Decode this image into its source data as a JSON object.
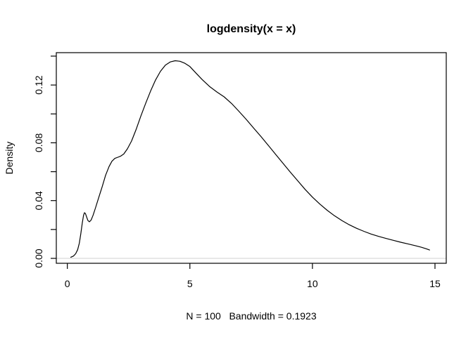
{
  "chart_data": {
    "type": "line",
    "title": "logdensity(x = x)",
    "xlabel": "N = 100   Bandwidth = 0.1923",
    "ylabel": "Density",
    "xlim": [
      -0.45,
      15.46
    ],
    "ylim": [
      -0.0034,
      0.1424
    ],
    "grid": false,
    "legend": null,
    "x_ticks": [
      {
        "v": 0,
        "label": "0"
      },
      {
        "v": 5,
        "label": "5"
      },
      {
        "v": 10,
        "label": "10"
      },
      {
        "v": 15,
        "label": "15"
      }
    ],
    "y_ticks": [
      {
        "v": 0.0,
        "label": "0.00"
      },
      {
        "v": 0.02,
        "label": ""
      },
      {
        "v": 0.04,
        "label": "0.04"
      },
      {
        "v": 0.06,
        "label": ""
      },
      {
        "v": 0.08,
        "label": "0.08"
      },
      {
        "v": 0.1,
        "label": ""
      },
      {
        "v": 0.12,
        "label": "0.12"
      },
      {
        "v": 0.14,
        "label": ""
      }
    ],
    "colors": {
      "curve": "#000000",
      "box": "#000000",
      "text": "#000000",
      "zero_line": "#d9d9d9"
    },
    "zero_reference_line_y": 0,
    "series": [
      {
        "name": "density",
        "points": [
          [
            0.14,
            0.0008
          ],
          [
            0.25,
            0.0016
          ],
          [
            0.34,
            0.0032
          ],
          [
            0.42,
            0.006
          ],
          [
            0.49,
            0.0105
          ],
          [
            0.55,
            0.017
          ],
          [
            0.61,
            0.0245
          ],
          [
            0.66,
            0.0298
          ],
          [
            0.7,
            0.0316
          ],
          [
            0.74,
            0.031
          ],
          [
            0.79,
            0.0285
          ],
          [
            0.84,
            0.0262
          ],
          [
            0.9,
            0.0253
          ],
          [
            0.97,
            0.0265
          ],
          [
            1.05,
            0.0298
          ],
          [
            1.15,
            0.035
          ],
          [
            1.28,
            0.042
          ],
          [
            1.42,
            0.0495
          ],
          [
            1.56,
            0.0575
          ],
          [
            1.7,
            0.0635
          ],
          [
            1.82,
            0.0672
          ],
          [
            1.94,
            0.0692
          ],
          [
            2.06,
            0.07
          ],
          [
            2.18,
            0.0708
          ],
          [
            2.3,
            0.0722
          ],
          [
            2.45,
            0.0758
          ],
          [
            2.62,
            0.0812
          ],
          [
            2.8,
            0.089
          ],
          [
            3.0,
            0.0985
          ],
          [
            3.2,
            0.1075
          ],
          [
            3.4,
            0.116
          ],
          [
            3.6,
            0.1235
          ],
          [
            3.8,
            0.1295
          ],
          [
            4.0,
            0.1338
          ],
          [
            4.2,
            0.136
          ],
          [
            4.4,
            0.1368
          ],
          [
            4.6,
            0.1364
          ],
          [
            4.8,
            0.135
          ],
          [
            5.0,
            0.1328
          ],
          [
            5.25,
            0.1282
          ],
          [
            5.5,
            0.1238
          ],
          [
            5.8,
            0.119
          ],
          [
            6.1,
            0.1152
          ],
          [
            6.4,
            0.1118
          ],
          [
            6.7,
            0.1072
          ],
          [
            7.0,
            0.1018
          ],
          [
            7.3,
            0.0962
          ],
          [
            7.6,
            0.0902
          ],
          [
            7.9,
            0.0843
          ],
          [
            8.2,
            0.0782
          ],
          [
            8.5,
            0.072
          ],
          [
            8.8,
            0.0658
          ],
          [
            9.1,
            0.0597
          ],
          [
            9.4,
            0.0537
          ],
          [
            9.7,
            0.0478
          ],
          [
            10.0,
            0.0424
          ],
          [
            10.3,
            0.0376
          ],
          [
            10.6,
            0.0333
          ],
          [
            10.9,
            0.0295
          ],
          [
            11.2,
            0.0262
          ],
          [
            11.5,
            0.0233
          ],
          [
            11.8,
            0.0208
          ],
          [
            12.1,
            0.0187
          ],
          [
            12.4,
            0.0168
          ],
          [
            12.7,
            0.0152
          ],
          [
            13.0,
            0.0138
          ],
          [
            13.3,
            0.0125
          ],
          [
            13.6,
            0.0112
          ],
          [
            13.9,
            0.01
          ],
          [
            14.2,
            0.0088
          ],
          [
            14.45,
            0.0077
          ],
          [
            14.65,
            0.0066
          ],
          [
            14.78,
            0.0058
          ]
        ]
      }
    ]
  }
}
